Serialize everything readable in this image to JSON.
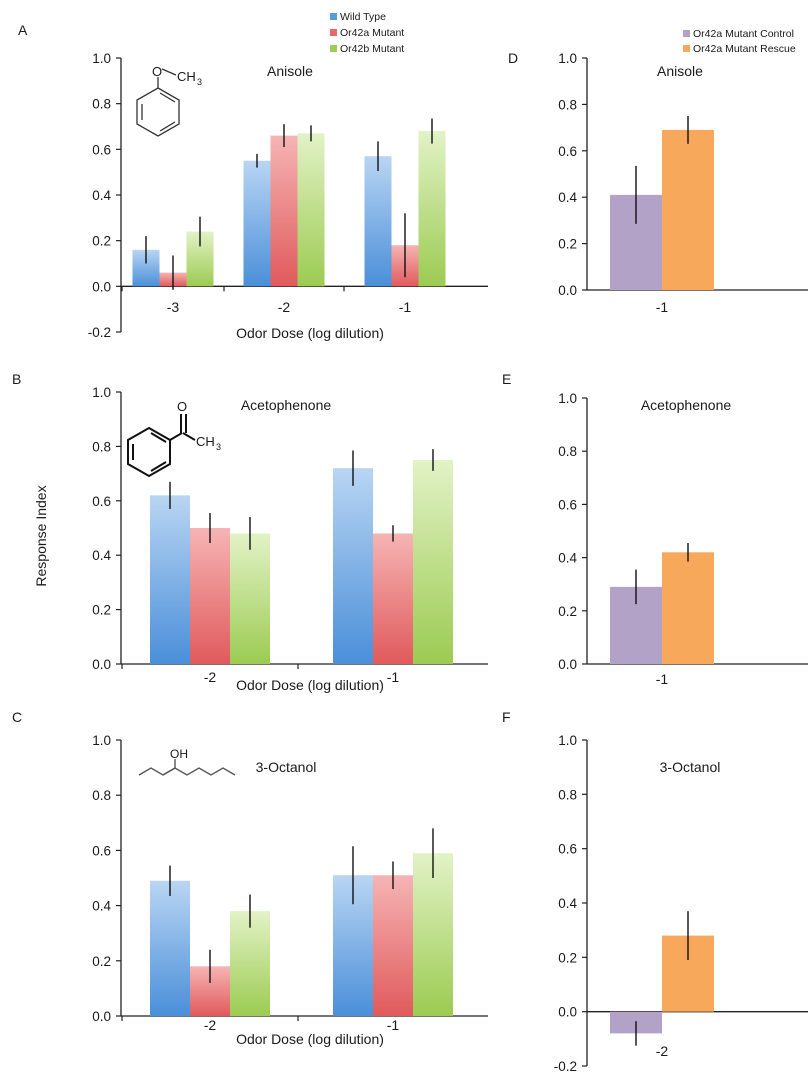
{
  "figure": {
    "ylabel": "Response Index",
    "legend_left": [
      {
        "name": "Wild Type",
        "color": "#5b9bd5"
      },
      {
        "name": "Or42a Mutant",
        "color": "#e8696b"
      },
      {
        "name": "Or42b Mutant",
        "color": "#9ccc5a"
      }
    ],
    "legend_right": [
      {
        "name": "Or42a Mutant Control",
        "color": "#b3a2c7"
      },
      {
        "name": "Or42a Mutant Rescue",
        "color": "#f7a85a"
      }
    ]
  },
  "chart_data": [
    {
      "panel": "A",
      "type": "bar",
      "title": "Anisole",
      "xlabel": "Odor Dose (log dilution)",
      "ylabel": "",
      "categories": [
        "-3",
        "-2",
        "-1"
      ],
      "series": [
        {
          "name": "Wild Type",
          "values": [
            0.16,
            0.55,
            0.57
          ],
          "errors": [
            0.06,
            0.03,
            0.065
          ]
        },
        {
          "name": "Or42a Mutant",
          "values": [
            0.06,
            0.66,
            0.18
          ],
          "errors": [
            0.075,
            0.05,
            0.14
          ]
        },
        {
          "name": "Or42b Mutant",
          "values": [
            0.24,
            0.67,
            0.68
          ],
          "errors": [
            0.065,
            0.035,
            0.055
          ]
        }
      ],
      "ylim": [
        -0.2,
        1.0
      ],
      "yticks": [
        "-0.2",
        "0.0",
        "0.2",
        "0.4",
        "0.6",
        "0.8",
        "1.0"
      ],
      "structure": "anisole",
      "grid": false
    },
    {
      "panel": "B",
      "type": "bar",
      "title": "Acetophenone",
      "xlabel": "Odor Dose (log dilution)",
      "ylabel": "",
      "categories": [
        "-2",
        "-1"
      ],
      "series": [
        {
          "name": "Wild Type",
          "values": [
            0.62,
            0.72
          ],
          "errors": [
            0.05,
            0.065
          ]
        },
        {
          "name": "Or42a Mutant",
          "values": [
            0.5,
            0.48
          ],
          "errors": [
            0.055,
            0.03
          ]
        },
        {
          "name": "Or42b Mutant",
          "values": [
            0.48,
            0.75
          ],
          "errors": [
            0.06,
            0.04
          ]
        }
      ],
      "ylim": [
        0.0,
        1.0
      ],
      "yticks": [
        "0.0",
        "0.2",
        "0.4",
        "0.6",
        "0.8",
        "1.0"
      ],
      "structure": "acetophenone",
      "grid": false
    },
    {
      "panel": "C",
      "type": "bar",
      "title": "3-Octanol",
      "xlabel": "Odor Dose (log dilution)",
      "ylabel": "",
      "categories": [
        "-2",
        "-1"
      ],
      "series": [
        {
          "name": "Wild Type",
          "values": [
            0.49,
            0.51
          ],
          "errors": [
            0.055,
            0.105
          ]
        },
        {
          "name": "Or42a Mutant",
          "values": [
            0.18,
            0.51
          ],
          "errors": [
            0.06,
            0.05
          ]
        },
        {
          "name": "Or42b Mutant",
          "values": [
            0.38,
            0.59
          ],
          "errors": [
            0.06,
            0.09
          ]
        }
      ],
      "ylim": [
        0.0,
        1.0
      ],
      "yticks": [
        "0.0",
        "0.2",
        "0.4",
        "0.6",
        "0.8",
        "1.0"
      ],
      "structure": "3-octanol",
      "grid": false
    },
    {
      "panel": "D",
      "type": "bar",
      "title": "Anisole",
      "xlabel": "",
      "ylabel": "",
      "categories": [
        "-1"
      ],
      "series": [
        {
          "name": "Or42a Mutant Control",
          "values": [
            0.41
          ],
          "errors": [
            0.125
          ]
        },
        {
          "name": "Or42a Mutant Rescue",
          "values": [
            0.69
          ],
          "errors": [
            0.06
          ]
        }
      ],
      "ylim": [
        0.0,
        1.0
      ],
      "yticks": [
        "0.0",
        "0.2",
        "0.4",
        "0.6",
        "0.8",
        "1.0"
      ],
      "grid": false
    },
    {
      "panel": "E",
      "type": "bar",
      "title": "Acetophenone",
      "xlabel": "",
      "ylabel": "",
      "categories": [
        "-1"
      ],
      "series": [
        {
          "name": "Or42a Mutant Control",
          "values": [
            0.29
          ],
          "errors": [
            0.065
          ]
        },
        {
          "name": "Or42a Mutant Rescue",
          "values": [
            0.42
          ],
          "errors": [
            0.035
          ]
        }
      ],
      "ylim": [
        0.0,
        1.0
      ],
      "yticks": [
        "0.0",
        "0.2",
        "0.4",
        "0.6",
        "0.8",
        "1.0"
      ],
      "grid": false
    },
    {
      "panel": "F",
      "type": "bar",
      "title": "3-Octanol",
      "xlabel": "",
      "ylabel": "",
      "categories": [
        "-2"
      ],
      "series": [
        {
          "name": "Or42a Mutant Control",
          "values": [
            -0.08
          ],
          "errors": [
            0.045
          ]
        },
        {
          "name": "Or42a Mutant Rescue",
          "values": [
            0.28
          ],
          "errors": [
            0.09
          ]
        }
      ],
      "ylim": [
        -0.2,
        1.0
      ],
      "yticks": [
        "-0.2",
        "0.0",
        "0.2",
        "0.4",
        "0.6",
        "0.8",
        "1.0"
      ],
      "grid": false
    }
  ]
}
